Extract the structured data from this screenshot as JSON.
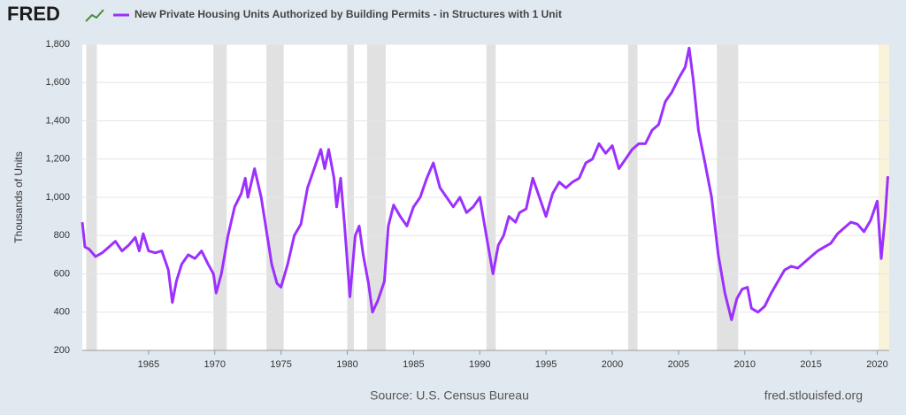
{
  "chart_data": {
    "type": "line",
    "logo": "FRED",
    "ylabel": "Thousands of Units",
    "source": "Source: U.S. Census Bureau",
    "site": "fred.stlouisfed.org",
    "grid": true,
    "xlim": [
      1960,
      2020.9
    ],
    "xticks": [
      1965,
      1970,
      1975,
      1980,
      1985,
      1990,
      1995,
      2000,
      2005,
      2010,
      2015,
      2020
    ],
    "ylim": [
      200,
      1800
    ],
    "yticks": [
      200,
      400,
      600,
      800,
      {
        "value": 1000,
        "label": "1,000"
      },
      {
        "value": 1200,
        "label": "1,200"
      },
      {
        "value": 1400,
        "label": "1,400"
      },
      {
        "value": 1600,
        "label": "1,600"
      },
      {
        "value": 1800,
        "label": "1,800"
      }
    ],
    "recessions": [
      {
        "start": 1960.3,
        "end": 1961.1,
        "color": "#e1e1e1"
      },
      {
        "start": 1969.9,
        "end": 1970.9,
        "color": "#e1e1e1"
      },
      {
        "start": 1973.9,
        "end": 1975.2,
        "color": "#e1e1e1"
      },
      {
        "start": 1980.0,
        "end": 1980.5,
        "color": "#e1e1e1"
      },
      {
        "start": 1981.5,
        "end": 1982.9,
        "color": "#e1e1e1"
      },
      {
        "start": 1990.5,
        "end": 1991.2,
        "color": "#e1e1e1"
      },
      {
        "start": 2001.2,
        "end": 2001.9,
        "color": "#e1e1e1"
      },
      {
        "start": 2007.9,
        "end": 2009.5,
        "color": "#e1e1e1"
      },
      {
        "start": 2020.1,
        "end": 2020.9,
        "color": "#f8f3da"
      }
    ],
    "x": [
      1960.0,
      1960.2,
      1960.5,
      1961,
      1961.5,
      1962,
      1962.5,
      1963,
      1963.5,
      1964,
      1964.3,
      1964.6,
      1965,
      1965.5,
      1966,
      1966.5,
      1966.8,
      1967.1,
      1967.5,
      1968,
      1968.5,
      1969,
      1969.5,
      1969.9,
      1970.1,
      1970.5,
      1971,
      1971.5,
      1972,
      1972.3,
      1972.5,
      1973,
      1973.5,
      1974,
      1974.3,
      1974.7,
      1975,
      1975.5,
      1976,
      1976.5,
      1977,
      1977.5,
      1978,
      1978.3,
      1978.6,
      1979,
      1979.2,
      1979.5,
      1979.8,
      1980.2,
      1980.6,
      1980.9,
      1981.2,
      1981.6,
      1981.9,
      1982.3,
      1982.8,
      1983.1,
      1983.5,
      1984,
      1984.5,
      1985,
      1985.5,
      1986,
      1986.5,
      1987,
      1987.5,
      1988,
      1988.5,
      1989,
      1989.5,
      1990,
      1990.5,
      1991,
      1991.4,
      1991.8,
      1992.2,
      1992.7,
      1993,
      1993.5,
      1994,
      1994.5,
      1995,
      1995.5,
      1996,
      1996.5,
      1997,
      1997.5,
      1998,
      1998.5,
      1999,
      1999.5,
      2000,
      2000.5,
      2001,
      2001.5,
      2002,
      2002.5,
      2003,
      2003.5,
      2004,
      2004.5,
      2005,
      2005.5,
      2005.8,
      2006.1,
      2006.5,
      2007,
      2007.5,
      2008,
      2008.5,
      2009,
      2009.4,
      2009.8,
      2010.2,
      2010.5,
      2011,
      2011.5,
      2012,
      2012.5,
      2013,
      2013.5,
      2014,
      2014.5,
      2015,
      2015.5,
      2016,
      2016.5,
      2017,
      2017.5,
      2018,
      2018.5,
      2019,
      2019.5,
      2020,
      2020.3,
      2020.6,
      2020.8
    ],
    "series": [
      {
        "name": "New Private Housing Units Authorized by Building Permits - in Structures with 1 Unit",
        "color": "#9b30ff",
        "values": [
          870,
          740,
          730,
          690,
          710,
          740,
          770,
          720,
          750,
          790,
          720,
          810,
          720,
          710,
          720,
          620,
          450,
          560,
          650,
          700,
          680,
          720,
          650,
          600,
          500,
          600,
          800,
          950,
          1020,
          1100,
          1000,
          1150,
          1000,
          780,
          650,
          550,
          530,
          650,
          800,
          860,
          1050,
          1150,
          1250,
          1150,
          1250,
          1100,
          950,
          1100,
          850,
          480,
          800,
          850,
          700,
          550,
          400,
          460,
          560,
          850,
          960,
          900,
          850,
          950,
          1000,
          1100,
          1180,
          1050,
          1000,
          950,
          1000,
          920,
          950,
          1000,
          800,
          600,
          750,
          800,
          900,
          870,
          920,
          940,
          1100,
          1000,
          900,
          1020,
          1080,
          1050,
          1080,
          1100,
          1180,
          1200,
          1280,
          1230,
          1270,
          1150,
          1200,
          1250,
          1280,
          1280,
          1350,
          1380,
          1500,
          1550,
          1620,
          1680,
          1780,
          1620,
          1350,
          1180,
          1000,
          700,
          500,
          360,
          470,
          520,
          530,
          420,
          400,
          430,
          500,
          560,
          620,
          640,
          630,
          660,
          690,
          720,
          740,
          760,
          810,
          840,
          870,
          860,
          820,
          880,
          980,
          680,
          900,
          1110
        ]
      }
    ]
  }
}
